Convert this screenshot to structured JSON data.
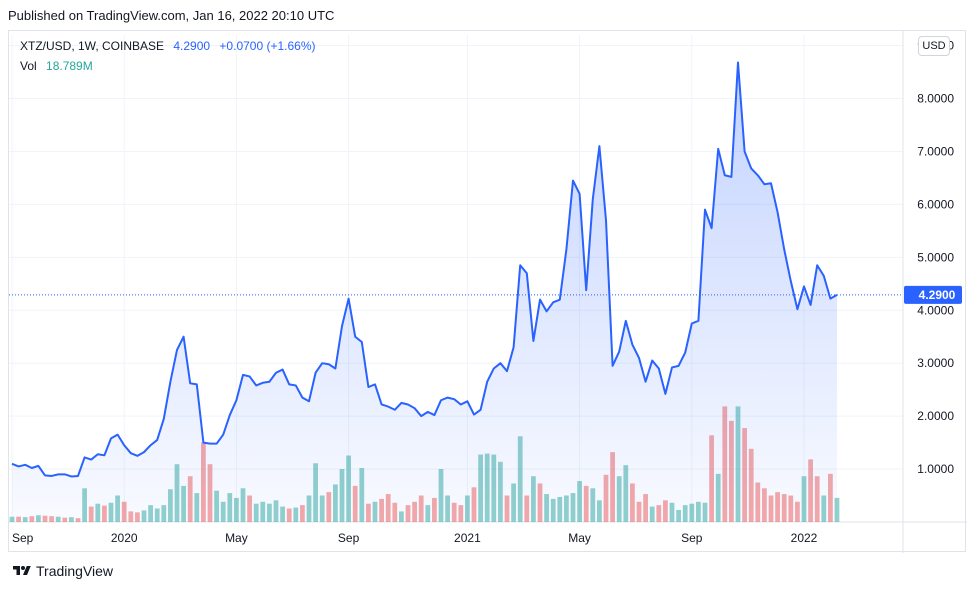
{
  "header": {
    "published": "Published on TradingView.com, Jan 16, 2022 20:10 UTC"
  },
  "legend": {
    "symbol": "XTZ/USD, 1W, COINBASE",
    "price": "4.2900",
    "change": "+0.0700 (+1.66%)",
    "vol_label": "Vol",
    "vol_value": "18.789M"
  },
  "currency_button": "USD",
  "footer": {
    "brand": "TradingView"
  },
  "colors": {
    "line": "#2962ff",
    "area": "#2962ff",
    "vol_up": "#26a69a",
    "vol_down": "#ef5350",
    "last_price_bg": "#2962ff"
  },
  "chart_data": {
    "type": "area",
    "ylim": [
      0,
      9.2
    ],
    "y_ticks": [
      "1.0000",
      "2.0000",
      "3.0000",
      "4.0000",
      "5.0000",
      "6.0000",
      "7.0000",
      "8.0000",
      "9.0000"
    ],
    "x_ticks": [
      "Sep",
      "2020",
      "May",
      "Sep",
      "2021",
      "May",
      "Sep",
      "2022"
    ],
    "last_price_label": "4.2900",
    "last_price": 4.29,
    "series": [
      {
        "type": "line",
        "values": [
          1.1,
          1.05,
          1.08,
          1.02,
          1.06,
          0.88,
          0.87,
          0.9,
          0.9,
          0.86,
          0.87,
          1.22,
          1.18,
          1.28,
          1.26,
          1.58,
          1.65,
          1.45,
          1.3,
          1.25,
          1.32,
          1.45,
          1.55,
          1.95,
          2.65,
          3.25,
          3.5,
          2.62,
          2.6,
          1.5,
          1.48,
          1.48,
          1.65,
          2.02,
          2.3,
          2.78,
          2.75,
          2.58,
          2.63,
          2.65,
          2.82,
          2.88,
          2.6,
          2.58,
          2.35,
          2.28,
          2.82,
          3.0,
          2.98,
          2.9,
          3.7,
          4.22,
          3.5,
          3.4,
          2.55,
          2.6,
          2.22,
          2.18,
          2.12,
          2.25,
          2.22,
          2.15,
          2.0,
          2.08,
          2.02,
          2.3,
          2.35,
          2.32,
          2.22,
          2.28,
          2.03,
          2.12,
          2.65,
          2.9,
          3.0,
          2.85,
          3.3,
          4.85,
          4.7,
          3.42,
          4.2,
          3.98,
          4.15,
          4.2,
          5.15,
          6.45,
          6.2,
          4.38,
          6.1,
          7.1,
          5.7,
          2.95,
          3.22,
          3.8,
          3.35,
          3.1,
          2.65,
          3.05,
          2.9,
          2.42,
          2.92,
          2.95,
          3.2,
          3.75,
          3.8,
          5.9,
          5.55,
          7.05,
          6.55,
          6.52,
          8.68,
          7.0,
          6.68,
          6.55,
          6.38,
          6.4,
          5.85,
          5.15,
          4.55,
          4.02,
          4.45,
          4.1,
          4.85,
          4.65,
          4.22,
          4.29
        ]
      },
      {
        "type": "bar",
        "name": "Vol",
        "values": [
          0.11,
          0.11,
          0.1,
          0.12,
          0.14,
          0.13,
          0.12,
          0.11,
          0.09,
          0.1,
          0.08,
          0.7,
          0.32,
          0.38,
          0.34,
          0.4,
          0.55,
          0.42,
          0.22,
          0.2,
          0.24,
          0.35,
          0.28,
          0.35,
          0.68,
          1.2,
          0.75,
          0.95,
          0.6,
          1.65,
          1.2,
          0.65,
          0.42,
          0.6,
          0.5,
          0.7,
          0.55,
          0.38,
          0.42,
          0.38,
          0.45,
          0.32,
          0.28,
          0.3,
          0.35,
          0.55,
          1.22,
          0.55,
          0.62,
          0.78,
          1.1,
          1.38,
          0.75,
          1.12,
          0.38,
          0.42,
          0.48,
          0.58,
          0.4,
          0.22,
          0.35,
          0.42,
          0.55,
          0.35,
          0.5,
          1.1,
          0.55,
          0.4,
          0.35,
          0.55,
          0.72,
          1.4,
          1.42,
          1.4,
          1.25,
          0.55,
          0.8,
          1.78,
          0.55,
          0.95,
          0.8,
          0.58,
          0.48,
          0.52,
          0.55,
          0.6,
          0.85,
          0.75,
          0.7,
          0.45,
          0.98,
          1.45,
          0.95,
          1.18,
          0.8,
          0.42,
          0.58,
          0.32,
          0.35,
          0.45,
          0.4,
          0.25,
          0.35,
          0.38,
          0.42,
          0.4,
          1.8,
          1.0,
          2.4,
          2.1,
          2.4,
          1.95,
          1.52,
          0.82,
          0.7,
          0.55,
          0.62,
          0.58,
          0.55,
          0.42,
          0.95,
          1.3,
          0.95,
          0.55,
          1.0,
          0.5
        ],
        "up": [
          1,
          0,
          1,
          0,
          1,
          0,
          0,
          1,
          0,
          1,
          0,
          1,
          0,
          1,
          0,
          1,
          1,
          0,
          0,
          0,
          1,
          1,
          1,
          1,
          1,
          1,
          1,
          0,
          1,
          0,
          0,
          1,
          1,
          1,
          1,
          1,
          0,
          1,
          1,
          1,
          1,
          1,
          0,
          1,
          0,
          1,
          1,
          1,
          0,
          1,
          1,
          1,
          0,
          1,
          0,
          1,
          0,
          0,
          0,
          1,
          0,
          0,
          0,
          1,
          0,
          1,
          1,
          0,
          0,
          1,
          0,
          1,
          1,
          1,
          1,
          0,
          1,
          1,
          0,
          1,
          0,
          1,
          1,
          1,
          1,
          1,
          1,
          0,
          1,
          1,
          0,
          0,
          1,
          1,
          0,
          0,
          0,
          1,
          0,
          0,
          1,
          1,
          1,
          1,
          1,
          1,
          0,
          1,
          0,
          0,
          1,
          0,
          0,
          0,
          0,
          0,
          0,
          0,
          0,
          0,
          1,
          0,
          0,
          1,
          0,
          1
        ]
      }
    ]
  }
}
